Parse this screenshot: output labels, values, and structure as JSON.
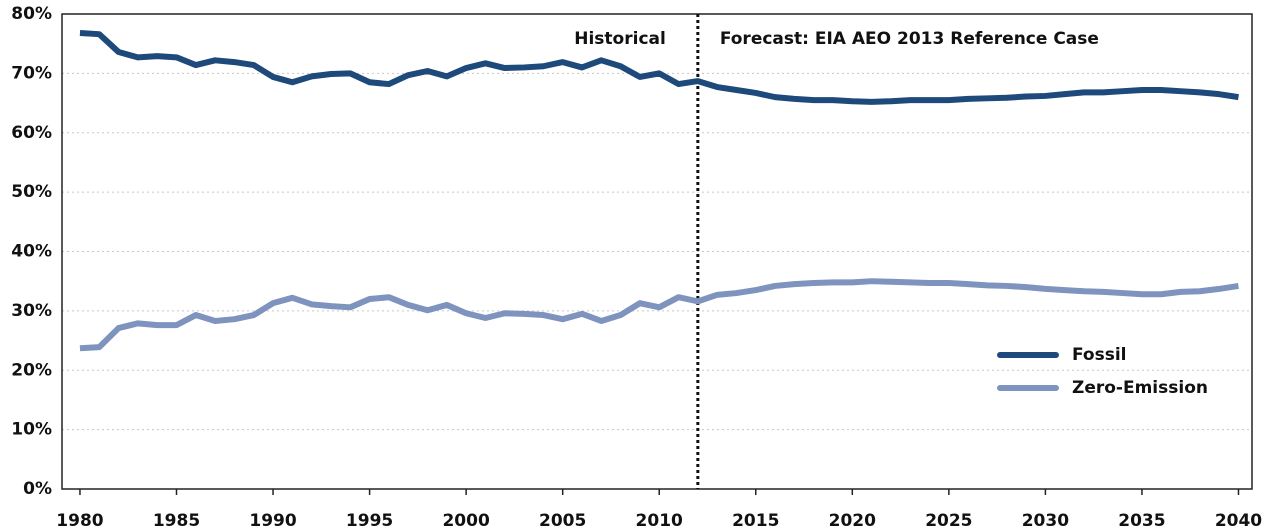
{
  "chart_data": {
    "type": "line",
    "x": [
      1980,
      1981,
      1982,
      1983,
      1984,
      1985,
      1986,
      1987,
      1988,
      1989,
      1990,
      1991,
      1992,
      1993,
      1994,
      1995,
      1996,
      1997,
      1998,
      1999,
      2000,
      2001,
      2002,
      2003,
      2004,
      2005,
      2006,
      2007,
      2008,
      2009,
      2010,
      2011,
      2012,
      2013,
      2014,
      2015,
      2016,
      2017,
      2018,
      2019,
      2020,
      2021,
      2022,
      2023,
      2024,
      2025,
      2026,
      2027,
      2028,
      2029,
      2030,
      2031,
      2032,
      2033,
      2034,
      2035,
      2036,
      2037,
      2038,
      2039,
      2040
    ],
    "series": [
      {
        "name": "Fossil",
        "color": "#1d4a7a",
        "values": [
          76.8,
          76.6,
          73.6,
          72.7,
          72.9,
          72.7,
          71.4,
          72.2,
          71.9,
          71.4,
          69.4,
          68.5,
          69.5,
          69.9,
          70,
          68.5,
          68.2,
          69.7,
          70.4,
          69.5,
          70.9,
          71.7,
          70.9,
          71,
          71.2,
          71.9,
          71,
          72.2,
          71.2,
          69.4,
          70,
          68.2,
          68.7,
          67.7,
          67.2,
          66.7,
          66,
          65.7,
          65.5,
          65.5,
          65.3,
          65.2,
          65.3,
          65.5,
          65.5,
          65.5,
          65.7,
          65.8,
          65.9,
          66.1,
          66.2,
          66.5,
          66.8,
          66.8,
          67,
          67.2,
          67.2,
          67,
          66.8,
          66.5,
          66
        ]
      },
      {
        "name": "Zero-Emission",
        "color": "#7f93bf",
        "values": [
          23.7,
          23.9,
          27.1,
          27.9,
          27.6,
          27.6,
          29.3,
          28.3,
          28.6,
          29.3,
          31.3,
          32.2,
          31.1,
          30.8,
          30.6,
          32,
          32.3,
          31,
          30.1,
          31,
          29.6,
          28.8,
          29.6,
          29.5,
          29.3,
          28.6,
          29.5,
          28.3,
          29.3,
          31.3,
          30.6,
          32.3,
          31.6,
          32.7,
          33,
          33.5,
          34.2,
          34.5,
          34.7,
          34.8,
          34.8,
          35,
          34.9,
          34.8,
          34.7,
          34.7,
          34.5,
          34.3,
          34.2,
          34,
          33.7,
          33.5,
          33.3,
          33.2,
          33,
          32.8,
          32.8,
          33.2,
          33.3,
          33.7,
          34.2
        ]
      }
    ],
    "xlim": [
      1979.07,
      2040.7
    ],
    "xticks": [
      1980,
      1985,
      1990,
      1995,
      2000,
      2005,
      2010,
      2015,
      2020,
      2025,
      2030,
      2035,
      2040
    ],
    "ylim": [
      0,
      80
    ],
    "yticks": [
      {
        "value": 0,
        "label": "0%"
      },
      {
        "value": 10,
        "label": "10%"
      },
      {
        "value": 20,
        "label": "20%"
      },
      {
        "value": 30,
        "label": "30%"
      },
      {
        "value": 40,
        "label": "40%"
      },
      {
        "value": 50,
        "label": "50%"
      },
      {
        "value": 60,
        "label": "60%"
      },
      {
        "value": 70,
        "label": "70%"
      },
      {
        "value": 80,
        "label": "80%"
      }
    ],
    "grid": true,
    "legend": "right",
    "divider": {
      "x": 2012,
      "left_label": "Historical",
      "right_label": "Forecast: EIA AEO 2013 Reference Case"
    }
  }
}
